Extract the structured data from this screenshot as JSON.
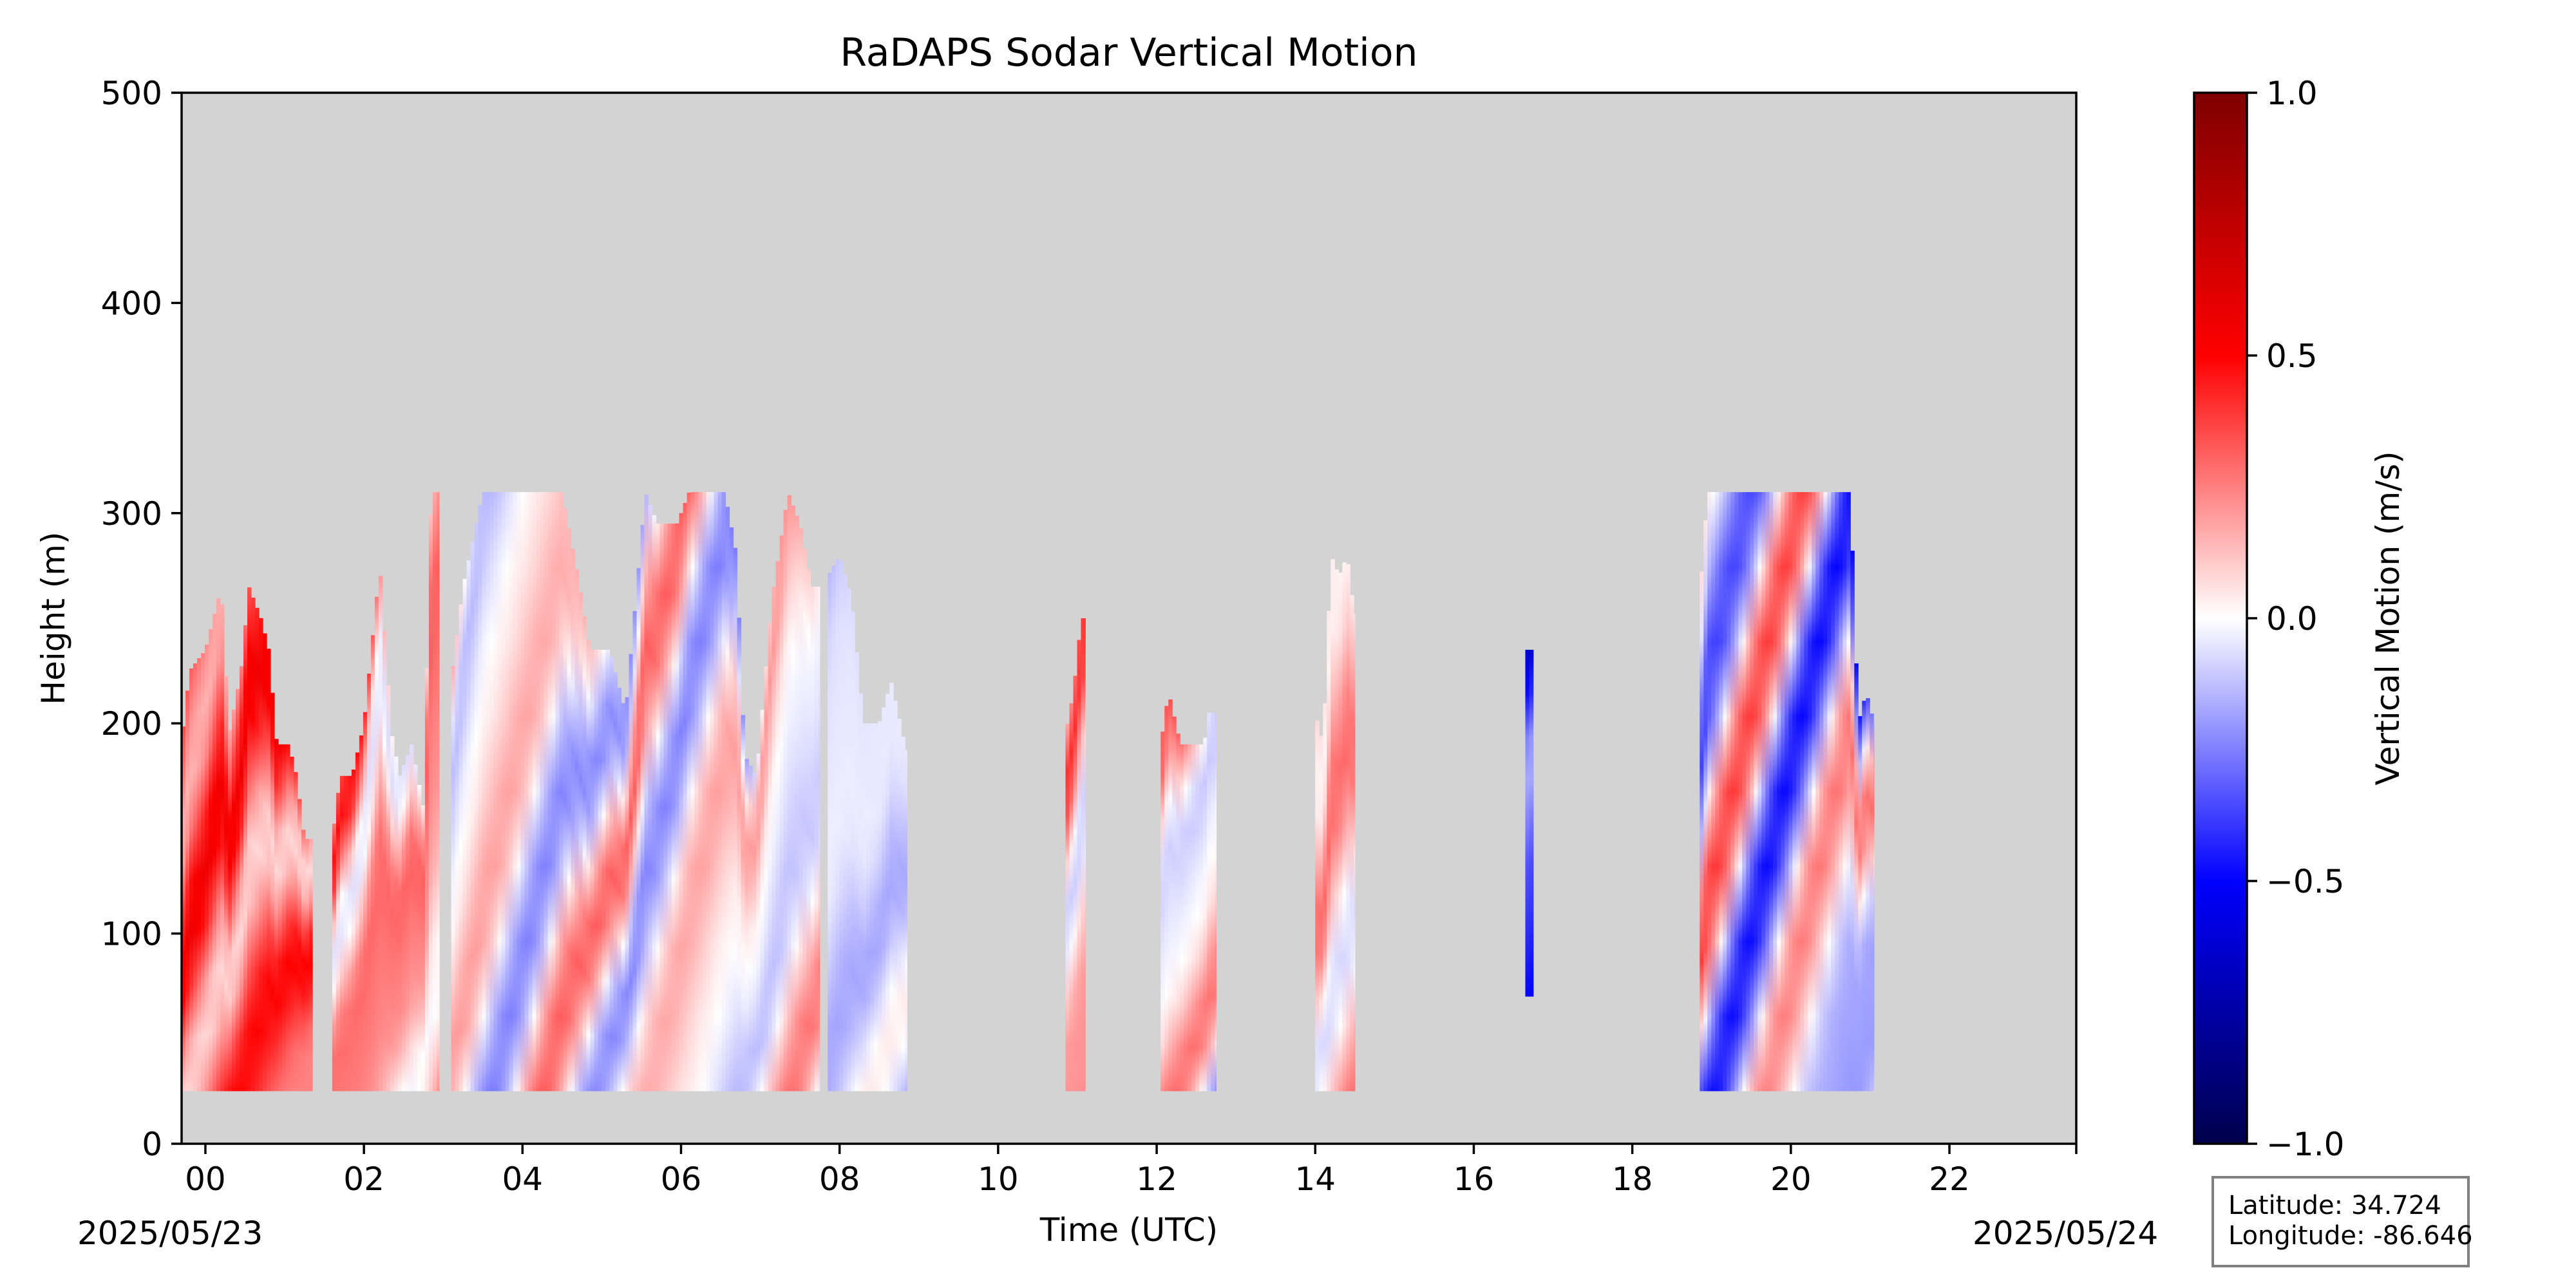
{
  "chart_data": {
    "type": "heatmap",
    "title": "RaDAPS Sodar Vertical Motion",
    "xlabel": "Time (UTC)",
    "ylabel": "Height (m)",
    "x_ticks": [
      "00",
      "02",
      "04",
      "06",
      "08",
      "10",
      "12",
      "14",
      "16",
      "18",
      "20",
      "22"
    ],
    "x_tick_hours": [
      0,
      2,
      4,
      6,
      8,
      10,
      12,
      14,
      16,
      18,
      20,
      22
    ],
    "xlim_hours": [
      -0.3,
      23.6
    ],
    "y_ticks": [
      "0",
      "100",
      "200",
      "300",
      "400",
      "500"
    ],
    "y_tick_values": [
      0,
      100,
      200,
      300,
      400,
      500
    ],
    "ylim": [
      0,
      500
    ],
    "start_date": "2025/05/23",
    "end_date": "2025/05/24",
    "background_color": "#d3d3d3",
    "colorbar": {
      "label": "Vertical Motion (m/s)",
      "cmap": "seismic",
      "range": [
        -1.0,
        1.0
      ],
      "ticks": [
        "1.0",
        "0.5",
        "0.0",
        "−0.5",
        "−1.0"
      ],
      "tick_values": [
        1.0,
        0.5,
        0.0,
        -0.5,
        -1.0
      ]
    },
    "segments": [
      {
        "t0": -0.3,
        "t1": 1.35,
        "h_bottom": 25,
        "top_profile": [
          [
            -0.3,
            190
          ],
          [
            -0.2,
            225
          ],
          [
            0.0,
            235
          ],
          [
            0.2,
            265
          ],
          [
            0.3,
            195
          ],
          [
            0.45,
            225
          ],
          [
            0.55,
            265
          ],
          [
            0.7,
            250
          ],
          [
            0.8,
            235
          ],
          [
            0.9,
            190
          ],
          [
            1.05,
            190
          ],
          [
            1.15,
            175
          ],
          [
            1.25,
            145
          ],
          [
            1.35,
            145
          ]
        ],
        "mean": 0.32,
        "variation": 0.25
      },
      {
        "t0": 1.6,
        "t1": 2.95,
        "h_bottom": 25,
        "top_profile": [
          [
            1.6,
            145
          ],
          [
            1.7,
            175
          ],
          [
            1.85,
            175
          ],
          [
            2.0,
            200
          ],
          [
            2.2,
            275
          ],
          [
            2.35,
            195
          ],
          [
            2.45,
            175
          ],
          [
            2.6,
            190
          ],
          [
            2.75,
            160
          ],
          [
            2.85,
            310
          ],
          [
            2.95,
            310
          ]
        ],
        "mean": 0.18,
        "variation": 0.3
      },
      {
        "t0": 3.1,
        "t1": 7.75,
        "h_bottom": 25,
        "top_profile": [
          [
            3.1,
            220
          ],
          [
            3.25,
            265
          ],
          [
            3.5,
            310
          ],
          [
            4.5,
            310
          ],
          [
            4.7,
            270
          ],
          [
            4.85,
            235
          ],
          [
            5.1,
            235
          ],
          [
            5.3,
            205
          ],
          [
            5.55,
            310
          ],
          [
            5.7,
            295
          ],
          [
            5.95,
            295
          ],
          [
            6.1,
            310
          ],
          [
            6.55,
            310
          ],
          [
            6.7,
            280
          ],
          [
            6.8,
            185
          ],
          [
            6.95,
            175
          ],
          [
            7.15,
            260
          ],
          [
            7.35,
            310
          ],
          [
            7.5,
            295
          ],
          [
            7.65,
            265
          ],
          [
            7.75,
            265
          ]
        ],
        "mean": 0.02,
        "variation": 0.3
      },
      {
        "t0": 7.85,
        "t1": 8.85,
        "h_bottom": 25,
        "top_profile": [
          [
            7.85,
            270
          ],
          [
            8.0,
            280
          ],
          [
            8.15,
            260
          ],
          [
            8.3,
            200
          ],
          [
            8.5,
            200
          ],
          [
            8.65,
            220
          ],
          [
            8.85,
            185
          ]
        ],
        "mean": -0.08,
        "variation": 0.12
      },
      {
        "t0": 10.85,
        "t1": 11.1,
        "h_bottom": 25,
        "top_profile": [
          [
            10.85,
            195
          ],
          [
            10.95,
            215
          ],
          [
            11.05,
            250
          ],
          [
            11.1,
            250
          ]
        ],
        "mean": 0.12,
        "variation": 0.3
      },
      {
        "t0": 12.05,
        "t1": 12.75,
        "h_bottom": 25,
        "top_profile": [
          [
            12.05,
            190
          ],
          [
            12.15,
            215
          ],
          [
            12.3,
            190
          ],
          [
            12.6,
            190
          ],
          [
            12.65,
            205
          ],
          [
            12.75,
            205
          ]
        ],
        "mean": 0.05,
        "variation": 0.35
      },
      {
        "t0": 14.0,
        "t1": 14.5,
        "h_bottom": 25,
        "top_profile": [
          [
            14.0,
            205
          ],
          [
            14.1,
            190
          ],
          [
            14.2,
            280
          ],
          [
            14.3,
            270
          ],
          [
            14.4,
            280
          ],
          [
            14.5,
            250
          ]
        ],
        "mean": 0.12,
        "variation": 0.2
      },
      {
        "t0": 16.65,
        "t1": 16.75,
        "h_bottom": 70,
        "top_profile": [
          [
            16.65,
            235
          ],
          [
            16.75,
            235
          ]
        ],
        "mean": -0.35,
        "variation": 0.3
      },
      {
        "t0": 18.85,
        "t1": 21.05,
        "h_bottom": 25,
        "top_profile": [
          [
            18.85,
            260
          ],
          [
            18.95,
            310
          ],
          [
            20.75,
            310
          ],
          [
            20.85,
            200
          ],
          [
            20.95,
            215
          ],
          [
            21.05,
            200
          ]
        ],
        "mean": -0.05,
        "variation": 0.45
      }
    ]
  },
  "info_box": {
    "latitude": "Latitude: 34.724",
    "longitude": "Longitude: -86.646"
  }
}
